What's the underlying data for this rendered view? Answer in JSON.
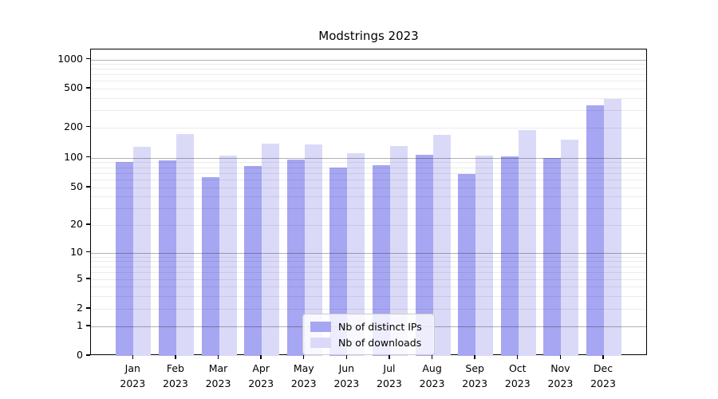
{
  "chart_data": {
    "type": "bar",
    "title": "Modstrings 2023",
    "categories": [
      "Jan",
      "Feb",
      "Mar",
      "Apr",
      "May",
      "Jun",
      "Jul",
      "Aug",
      "Sep",
      "Oct",
      "Nov",
      "Dec"
    ],
    "x_tick_year": "2023",
    "series": [
      {
        "name": "Nb of distinct IPs",
        "color": "#a6a6f2",
        "values": [
          90,
          94,
          64,
          83,
          96,
          80,
          84,
          107,
          68,
          103,
          100,
          340
        ]
      },
      {
        "name": "Nb of downloads",
        "color": "#dadaf8",
        "values": [
          128,
          172,
          105,
          138,
          135,
          111,
          130,
          168,
          104,
          188,
          150,
          390
        ]
      }
    ],
    "yscale": "symlog",
    "yticks": [
      0,
      1,
      2,
      5,
      10,
      20,
      50,
      100,
      200,
      500,
      1000
    ],
    "ytick_labels": [
      "0",
      "1",
      "2",
      "5",
      "10",
      "20",
      "50",
      "100",
      "200",
      "500",
      "1000"
    ],
    "ylim": [
      0,
      1300
    ],
    "grid": true,
    "legend_position": "lower center"
  },
  "colors": {
    "grid_major": "#b0b0b0",
    "grid_minor": "#ececec",
    "axis": "#000000",
    "background": "#ffffff"
  }
}
